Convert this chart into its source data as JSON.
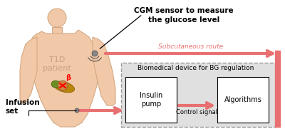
{
  "bg_color": "#ffffff",
  "body_color": "#f2c9a8",
  "body_outline_color": "#d4a882",
  "cgm_label": "CGM sensor to measure\nthe glucose level",
  "cgm_label_fontsize": 7.5,
  "subcutaneous_label": "Subcutaneous route",
  "subcutaneous_label_fontsize": 6.5,
  "biomedical_label": "Biomedical device for BG regulation",
  "biomedical_label_fontsize": 6.5,
  "insulin_pump_label": "Insulin\npump",
  "insulin_pump_fontsize": 7,
  "algorithms_label": "Algorithms",
  "algorithms_fontsize": 7,
  "control_signal_label": "Control signal",
  "control_signal_fontsize": 6,
  "infusion_label": "Infusion\nset",
  "infusion_fontsize": 7.5,
  "t1d_label": "T1D\npatient",
  "t1d_fontsize": 8,
  "beta_label": "β",
  "arrow_color": "#e87070",
  "box_bg": "#e0e0e0",
  "dashed_box_color": "#999999",
  "white_box_color": "#ffffff",
  "text_color": "#000000"
}
